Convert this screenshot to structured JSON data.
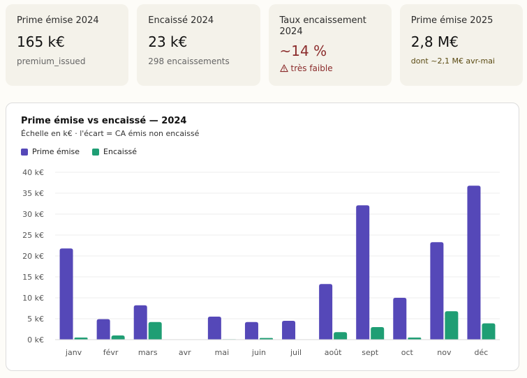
{
  "kpis": [
    {
      "label": "Prime émise 2024",
      "value": "165 k€",
      "sub": "premium_issued"
    },
    {
      "label": "Encaissé 2024",
      "value": "23 k€",
      "sub": "298 encaissements"
    },
    {
      "label": "Taux encaissement 2024",
      "value": "~14 %",
      "sub": "très faible"
    },
    {
      "label": "Prime émise 2025",
      "value": "2,8 M€",
      "sub": "dont ~2,1 M€ avr-mai"
    }
  ],
  "colors": {
    "issued": "#5548b8",
    "collected": "#1f9e74",
    "danger": "#8b2c2c"
  },
  "chart_data": {
    "type": "bar",
    "title": "Prime émise vs encaissé — 2024",
    "subtitle": "Échelle en k€ · l'écart = CA émis non encaissé",
    "categories": [
      "janv",
      "févr",
      "mars",
      "avr",
      "mai",
      "juin",
      "juil",
      "août",
      "sept",
      "oct",
      "nov",
      "déc"
    ],
    "series": [
      {
        "name": "Prime émise",
        "values": [
          21.8,
          4.9,
          8.2,
          0,
          5.5,
          4.2,
          4.5,
          13.3,
          32.1,
          10.0,
          23.3,
          36.8
        ]
      },
      {
        "name": "Encaissé",
        "values": [
          0.5,
          1.0,
          4.2,
          0,
          0.1,
          0.4,
          0,
          1.8,
          3.0,
          0.5,
          6.8,
          3.9
        ]
      }
    ],
    "yticks": [
      "0 k€",
      "5 k€",
      "10 k€",
      "15 k€",
      "20 k€",
      "25 k€",
      "30 k€",
      "35 k€",
      "40 k€"
    ],
    "ylim": [
      0,
      40
    ],
    "grid": true,
    "legend_position": "top-left"
  }
}
